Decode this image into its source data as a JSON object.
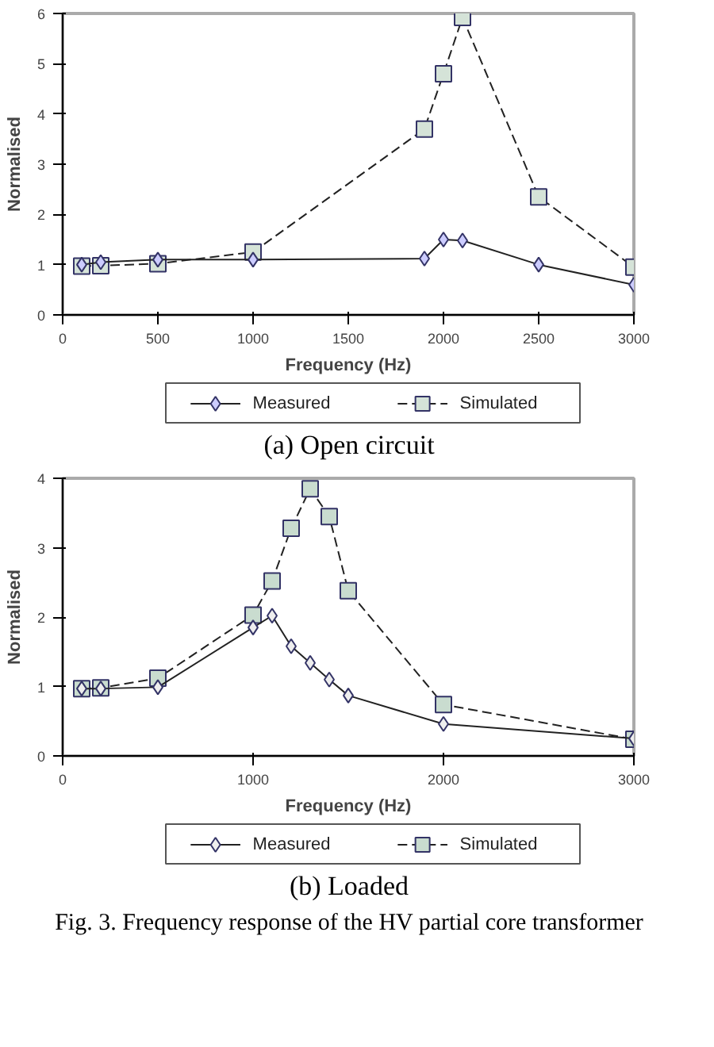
{
  "chart_data": [
    {
      "type": "line",
      "xlabel": "Frequency (Hz)",
      "ylabel": "Normalised",
      "xlim": [
        0,
        3000
      ],
      "xticks": [
        0,
        500,
        1000,
        1500,
        2000,
        2500,
        3000
      ],
      "ylim": [
        0,
        6
      ],
      "yticks": [
        0,
        1,
        2,
        3,
        4,
        5,
        6
      ],
      "grid": false,
      "legend": "bottom",
      "annotations": [
        "(a) Open circuit"
      ],
      "series": [
        {
          "name": "Measured",
          "color": "#ccccff",
          "marker": "diamond",
          "line_style": "solid",
          "x": [
            100,
            200,
            500,
            1000,
            1900,
            2000,
            2100,
            2500,
            3000
          ],
          "values": [
            1.0,
            1.05,
            1.1,
            1.1,
            1.12,
            1.5,
            1.48,
            1.0,
            0.6
          ]
        },
        {
          "name": "Simulated",
          "color": "#d5e3d8",
          "marker": "square",
          "line_style": "dashed",
          "x": [
            100,
            200,
            500,
            1000,
            1900,
            2000,
            2100,
            2500,
            3000
          ],
          "values": [
            0.97,
            0.98,
            1.02,
            1.25,
            3.7,
            4.8,
            5.92,
            2.35,
            0.95
          ]
        }
      ]
    },
    {
      "type": "line",
      "xlabel": "Frequency (Hz)",
      "ylabel": "Normalised",
      "xlim": [
        0,
        3000
      ],
      "xticks": [
        0,
        1000,
        2000,
        3000
      ],
      "ylim": [
        0,
        4
      ],
      "yticks": [
        0,
        1,
        2,
        3,
        4
      ],
      "grid": false,
      "legend": "bottom",
      "annotations": [
        "(b) Loaded",
        "Fig. 3. Frequency response of the HV partial core transformer"
      ],
      "series": [
        {
          "name": "Measured",
          "color": "#eeeeee",
          "marker": "diamond",
          "line_style": "solid",
          "x": [
            100,
            200,
            500,
            1000,
            1100,
            1200,
            1300,
            1400,
            1500,
            2000,
            3000
          ],
          "values": [
            0.97,
            0.97,
            0.99,
            1.85,
            2.02,
            1.58,
            1.34,
            1.1,
            0.87,
            0.46,
            0.25
          ]
        },
        {
          "name": "Simulated",
          "color": "#c9dccf",
          "marker": "square",
          "line_style": "dashed",
          "x": [
            100,
            200,
            500,
            1000,
            1100,
            1200,
            1300,
            1400,
            1500,
            2000,
            3000
          ],
          "values": [
            0.97,
            0.98,
            1.12,
            2.03,
            2.52,
            3.28,
            3.85,
            3.45,
            2.38,
            0.74,
            0.24
          ]
        }
      ]
    }
  ]
}
